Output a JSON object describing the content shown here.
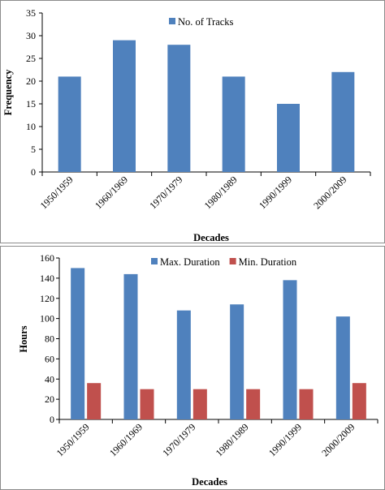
{
  "chart_data": [
    {
      "type": "bar",
      "categories": [
        "1950/1959",
        "1960/1969",
        "1970/1979",
        "1980/1989",
        "1990/1999",
        "2000/2009"
      ],
      "series": [
        {
          "name": "No. of Tracks",
          "values": [
            21,
            29,
            28,
            21,
            15,
            22
          ],
          "color": "#4F81BD"
        }
      ],
      "ylim": [
        0,
        35
      ],
      "yticks": [
        0,
        5,
        10,
        15,
        20,
        25,
        30,
        35
      ],
      "xlabel": "Decades",
      "ylabel": "Frequency",
      "legend_position": "top-center",
      "grid": false
    },
    {
      "type": "bar",
      "categories": [
        "1950/1959",
        "1960/1969",
        "1970/1979",
        "1980/1989",
        "1990/1999",
        "2000/2009"
      ],
      "series": [
        {
          "name": "Max. Duration",
          "values": [
            150,
            144,
            108,
            114,
            138,
            102
          ],
          "color": "#4F81BD"
        },
        {
          "name": "Min. Duration",
          "values": [
            36,
            30,
            30,
            30,
            30,
            36
          ],
          "color": "#C0504D"
        }
      ],
      "ylim": [
        0,
        160
      ],
      "yticks": [
        0,
        20,
        40,
        60,
        80,
        100,
        120,
        140,
        160
      ],
      "xlabel": "Decades",
      "ylabel": "Hours",
      "legend_position": "top-right",
      "grid": false
    }
  ]
}
